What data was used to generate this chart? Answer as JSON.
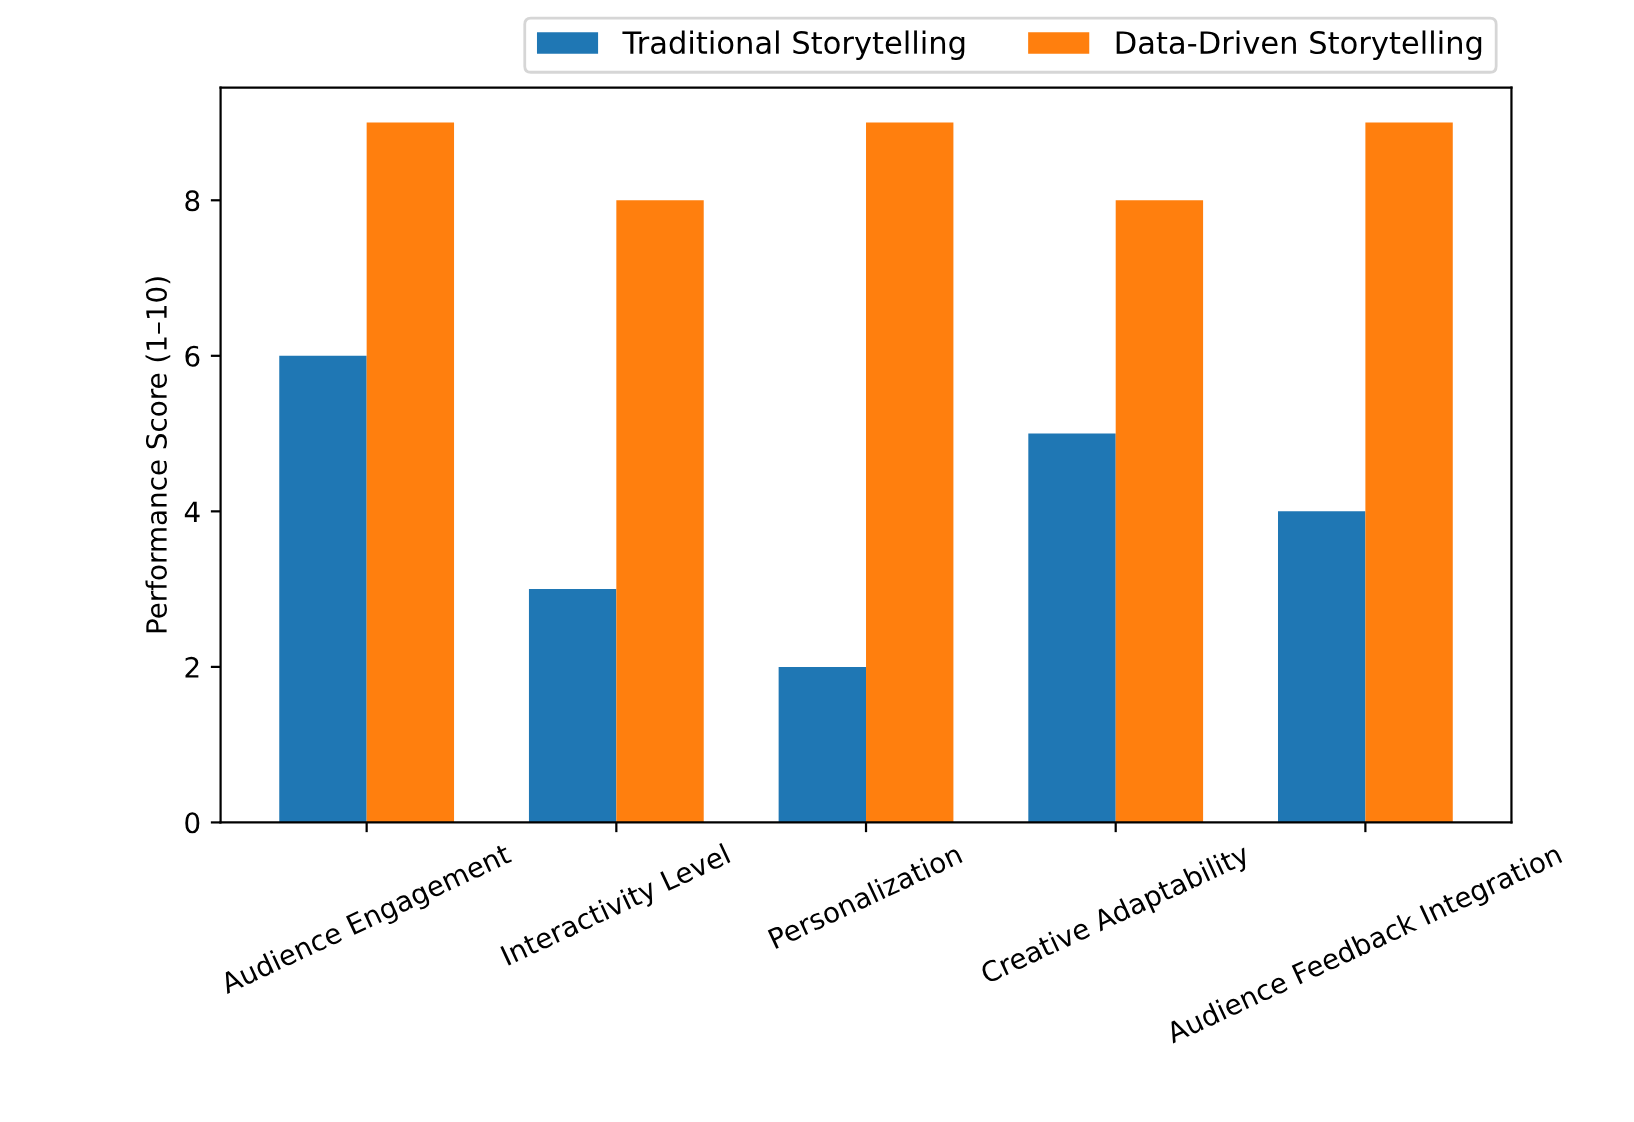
{
  "chart_data": {
    "type": "bar",
    "ylabel": "Performance Score (1–10)",
    "categories": [
      "Audience Engagement",
      "Interactivity Level",
      "Personalization",
      "Creative Adaptability",
      "Audience Feedback Integration"
    ],
    "series": [
      {
        "name": "Traditional Storytelling",
        "color": "#1f77b4",
        "values": [
          6,
          3,
          2,
          5,
          4
        ]
      },
      {
        "name": "Data-Driven Storytelling",
        "color": "#ff7f0e",
        "values": [
          9,
          8,
          9,
          8,
          9
        ]
      }
    ],
    "ylim": [
      0,
      9.45
    ],
    "yticks": [
      0,
      2,
      4,
      6,
      8
    ],
    "grid": false,
    "legend": "top right"
  }
}
